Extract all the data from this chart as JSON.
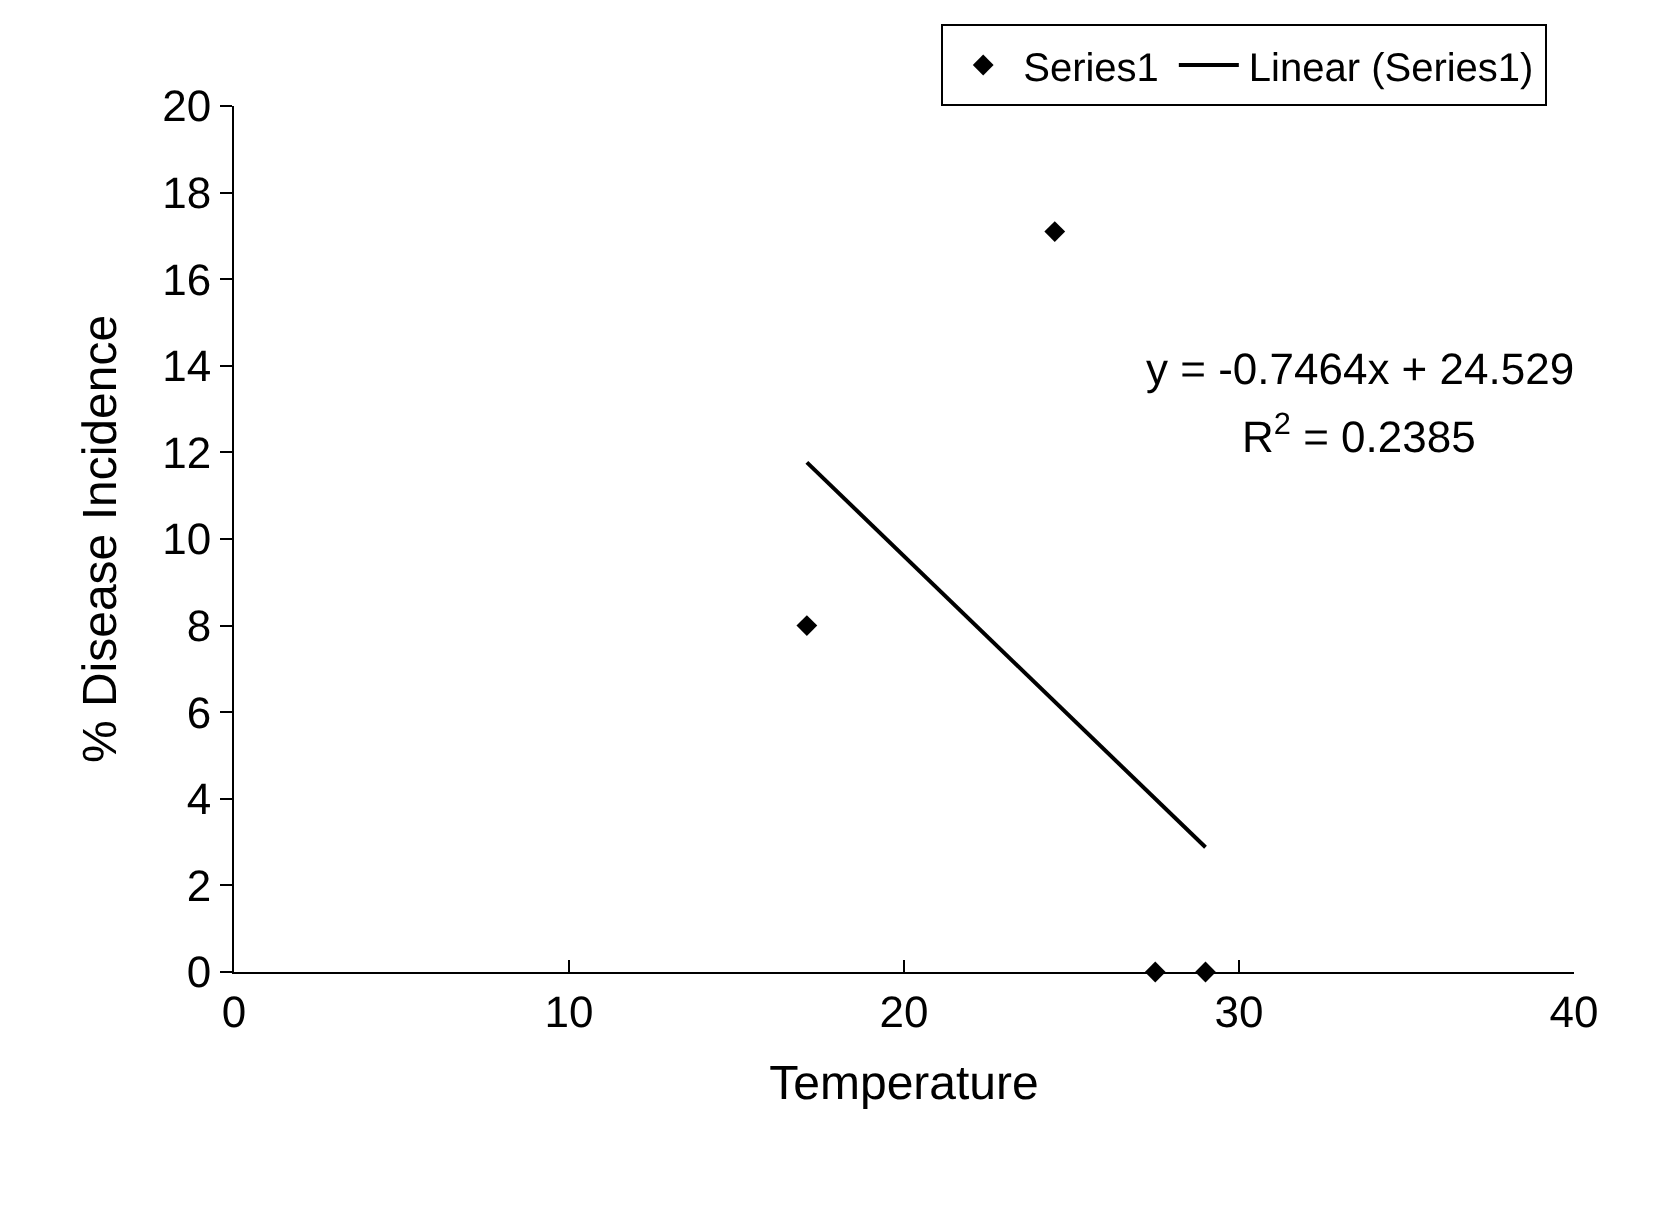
{
  "chart_data": {
    "type": "scatter",
    "xlabel": "Temperature",
    "ylabel": "% Disease Incidence",
    "xlim": [
      0,
      40
    ],
    "xticks": [
      0,
      10,
      20,
      30,
      40
    ],
    "ylim": [
      0,
      20
    ],
    "yticks": [
      0,
      2,
      4,
      6,
      8,
      10,
      12,
      14,
      16,
      18,
      20
    ],
    "legend": "top right",
    "series": [
      {
        "name": "Series1",
        "marker": "diamond",
        "color": "#000000",
        "x": [
          17.1,
          24.5,
          27.5,
          29.0
        ],
        "values": [
          8.0,
          17.1,
          0,
          0
        ]
      },
      {
        "name": "Linear (Series1)",
        "type": "line",
        "color": "#000000",
        "x": [
          17.1,
          29.0
        ],
        "values": [
          11.77,
          2.88
        ],
        "line_style": "solid"
      }
    ],
    "annotations": [
      "y = -0.7464x + 24.529",
      "R$^{2}$ = 0.2385"
    ]
  }
}
